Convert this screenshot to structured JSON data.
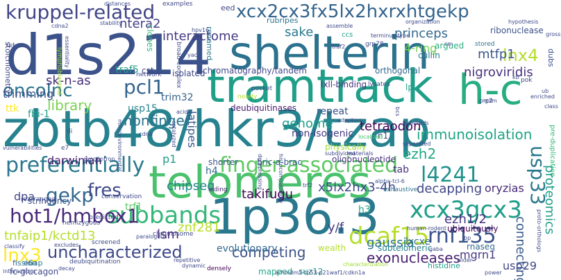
{
  "words": [
    {
      "text": "zbtb48/hkr3/tzap",
      "color": "#26828e"
    },
    {
      "text": "shelterin",
      "color": "#2c728e"
    },
    {
      "text": "d1s214",
      "color": "#3b528b"
    },
    {
      "text": "tramtrack",
      "color": "#1f9e89"
    },
    {
      "text": "telomeres",
      "color": "#4ac16d"
    },
    {
      "text": "1p36.3",
      "color": "#2a788e"
    },
    {
      "text": "h-c",
      "color": "#27ad81"
    },
    {
      "text": "finger-associated",
      "color": "#5ec962"
    },
    {
      "text": "preferentially",
      "color": "#2a788e"
    },
    {
      "text": "kruppel-related",
      "color": "#414487"
    },
    {
      "text": "xcx2cx3fx5lx2hxrxhtgekp",
      "color": "#33638d"
    },
    {
      "text": "oncolnc",
      "color": "#2c728e"
    },
    {
      "text": "pcl1",
      "color": "#33638d"
    },
    {
      "text": "subbands",
      "color": "#35b779"
    },
    {
      "text": "dcaf15",
      "color": "#b5de2b"
    },
    {
      "text": "rnf135",
      "color": "#3b528b"
    },
    {
      "text": "xcx3gcx3",
      "color": "#1f9e89"
    },
    {
      "text": "usp33",
      "color": "#2a788e"
    },
    {
      "text": "l4241",
      "color": "#21918c"
    },
    {
      "text": "hot1/hmbox1",
      "color": "#482878"
    },
    {
      "text": "gekp",
      "color": "#31688e"
    },
    {
      "text": "lnx3",
      "color": "#fde725"
    },
    {
      "text": "lnx4",
      "color": "#b5de2b"
    },
    {
      "text": "uncharacterized",
      "color": "#3e4989"
    },
    {
      "text": "interactome",
      "color": "#443983"
    },
    {
      "text": "princeps",
      "color": "#31688e"
    },
    {
      "text": "mtfp1",
      "color": "#39568c"
    },
    {
      "text": "nigroviridis",
      "color": "#46327e"
    },
    {
      "text": "immunoisolation",
      "color": "#20a486"
    },
    {
      "text": "nonfinger",
      "color": "#2c728e"
    },
    {
      "text": "tetraodon",
      "color": "#440154"
    },
    {
      "text": "fres",
      "color": "#3e4989"
    },
    {
      "text": "library",
      "color": "#7ad151"
    },
    {
      "text": "genome",
      "color": "#1f9e89"
    },
    {
      "text": "sk-n-as",
      "color": "#472d7b"
    },
    {
      "text": "x5lx2hx3-4h",
      "color": "#3e4989"
    },
    {
      "text": "competing",
      "color": "#3b528b"
    },
    {
      "text": "exonucleases",
      "color": "#481f70"
    },
    {
      "text": "tnfaip1/kctd13",
      "color": "#b5de2b"
    },
    {
      "text": "chipseq",
      "color": "#25848e"
    },
    {
      "text": "decapping",
      "color": "#3f4788"
    },
    {
      "text": "gaussia",
      "color": "#2c728e"
    },
    {
      "text": "ezh2",
      "color": "#22a884"
    },
    {
      "text": "ntera2",
      "color": "#424086"
    },
    {
      "text": "connecting",
      "color": "#38598c"
    },
    {
      "text": "proteomics",
      "color": "#1f9e89"
    },
    {
      "text": "mgrn1",
      "color": "#443983"
    },
    {
      "text": "sake",
      "color": "#2a788e"
    },
    {
      "text": "trimming",
      "color": "#3b528b"
    },
    {
      "text": "znf281",
      "color": "#b8de29"
    },
    {
      "text": "y/f",
      "color": "#443983"
    },
    {
      "text": "lsm",
      "color": "#482475"
    },
    {
      "text": "evolutionary",
      "color": "#31688e"
    },
    {
      "text": "usp29",
      "color": "#3f4788"
    },
    {
      "text": "ezh1/2",
      "color": "#46327e"
    },
    {
      "text": "takifugu",
      "color": "#440154"
    },
    {
      "text": "darwinian",
      "color": "#481b6d"
    },
    {
      "text": "dpa",
      "color": "#404688"
    },
    {
      "text": "fc-glucagon",
      "color": "#3e4989"
    },
    {
      "text": "traf5",
      "color": "#1f9e89"
    },
    {
      "text": "trf1",
      "color": "#5ec962"
    },
    {
      "text": "4-ring",
      "color": "#73d056"
    },
    {
      "text": "oryzias",
      "color": "#482878"
    },
    {
      "text": "latipes",
      "color": "#38588c"
    },
    {
      "text": "usp15",
      "color": "#25848e"
    },
    {
      "text": "trim32",
      "color": "#33638d"
    },
    {
      "text": "non-isogenic",
      "color": "#443983"
    },
    {
      "text": "wealth",
      "color": "#b5de2b"
    },
    {
      "text": "lxcxe",
      "color": "#2d708e"
    },
    {
      "text": "ttk",
      "color": "#fde725"
    },
    {
      "text": "fbi-1",
      "color": "#1f9e89"
    },
    {
      "text": "p1",
      "color": "#1f9e89"
    },
    {
      "text": "h4",
      "color": "#31688e"
    },
    {
      "text": "tab",
      "color": "#46327e"
    },
    {
      "text": "repeat",
      "color": "#3b528b"
    },
    {
      "text": "stringency",
      "color": "#3b528b"
    },
    {
      "text": "subtelomeric",
      "color": "#26828e"
    },
    {
      "text": "rnaseq",
      "color": "#31688e"
    },
    {
      "text": "mapped",
      "color": "#22a884"
    },
    {
      "text": "suz12",
      "color": "#1f9e89"
    },
    {
      "text": "ubiquitously",
      "color": "#440154"
    },
    {
      "text": "bric-a-brac",
      "color": "#38588c"
    },
    {
      "text": "oligonucleotide",
      "color": "#46327e"
    },
    {
      "text": "ribonuclease",
      "color": "#3b528b"
    },
    {
      "text": "chromatography/tandem",
      "color": "#3f4788"
    },
    {
      "text": "orthogonal",
      "color": "#31688e"
    },
    {
      "text": "deubiquitinases",
      "color": "#481b6d"
    },
    {
      "text": "lxll-binding",
      "color": "#46327e"
    },
    {
      "text": "isolated",
      "color": "#3e4989"
    },
    {
      "text": "argued",
      "color": "#29af7f"
    },
    {
      "text": "cullin",
      "color": "#2a788e"
    },
    {
      "text": "n1",
      "color": "#3f4788"
    },
    {
      "text": "physically",
      "color": "#a0da39"
    },
    {
      "text": "shorter",
      "color": "#3b528b"
    },
    {
      "text": "histidine",
      "color": "#1f9e89"
    },
    {
      "text": "fission",
      "color": "#31688e"
    },
    {
      "text": "e6ap",
      "color": "#2c728e"
    },
    {
      "text": "h3",
      "color": "#20a486"
    },
    {
      "text": "lp",
      "color": "#1f9e89"
    },
    {
      "text": "cst",
      "color": "#3f4788"
    },
    {
      "text": "clones",
      "color": "#35b779"
    },
    {
      "text": "renamed",
      "color": "#2a788e"
    },
    {
      "text": "rubripes",
      "color": "#2c728e"
    },
    {
      "text": "eed",
      "color": "#3f4788"
    },
    {
      "text": "examples",
      "color": "#3f4788"
    },
    {
      "text": "stoichiometry",
      "color": "#3e4989"
    },
    {
      "text": "nearly",
      "color": "#b5de2b"
    },
    {
      "text": "pocket",
      "color": "#3e4989"
    },
    {
      "text": "dubs",
      "color": "#3b528b"
    },
    {
      "text": "pre-duplication",
      "color": "#35b779"
    },
    {
      "text": "adaptors",
      "color": "#3e4989"
    },
    {
      "text": "hundreds",
      "color": "#3e4989"
    },
    {
      "text": "separated",
      "color": "#3e4989"
    },
    {
      "text": "localized",
      "color": "#4ac16d"
    },
    {
      "text": "aiding",
      "color": "#482878"
    },
    {
      "text": "densely",
      "color": "#440154"
    },
    {
      "text": "screened",
      "color": "#3e4989"
    },
    {
      "text": "hemizygous",
      "color": "#3e4989"
    },
    {
      "text": "rearranged",
      "color": "#3e4989"
    },
    {
      "text": "exhaustive",
      "color": "#2c728e"
    },
    {
      "text": "predicted",
      "color": "#3e4989"
    },
    {
      "text": "conservation",
      "color": "#3e4989"
    },
    {
      "text": "alpha-tcl-6",
      "color": "#3b528b"
    },
    {
      "text": "human-rodent",
      "color": "#3e4989"
    },
    {
      "text": "characterization",
      "color": "#a0da39"
    },
    {
      "text": "deubiquitination",
      "color": "#3e4989"
    },
    {
      "text": "chromosome",
      "color": "#3e4989"
    },
    {
      "text": "arf-mdm2-tp53-p21waf1/cdkn1a",
      "color": "#3e4989"
    },
    {
      "text": "interactions",
      "color": "#3e4989"
    },
    {
      "text": "broad-complex",
      "color": "#3e4989"
    },
    {
      "text": "hpv16",
      "color": "#3e4989"
    },
    {
      "text": "terminus-type",
      "color": "#3e4989"
    },
    {
      "text": "stability",
      "color": "#3e4989"
    },
    {
      "text": "assemble",
      "color": "#3e4989"
    },
    {
      "text": "organization",
      "color": "#3e4989"
    },
    {
      "text": "hypothesis",
      "color": "#3e4989"
    },
    {
      "text": "stored",
      "color": "#2c728e"
    },
    {
      "text": "grp78",
      "color": "#3e4989"
    },
    {
      "text": "ccs",
      "color": "#1f9e89"
    },
    {
      "text": "lysates",
      "color": "#3e4989"
    },
    {
      "text": "enriched",
      "color": "#3e4989"
    },
    {
      "text": "prc2",
      "color": "#3e4989"
    },
    {
      "text": "pok",
      "color": "#3e4989"
    },
    {
      "text": "network",
      "color": "#3e4989"
    },
    {
      "text": "distances",
      "color": "#3e4989"
    },
    {
      "text": "essentiality",
      "color": "#3e4989"
    },
    {
      "text": "lymphoblastoid",
      "color": "#a0da39"
    },
    {
      "text": "vulnerabilities",
      "color": "#3e4989"
    },
    {
      "text": "micronvironmental",
      "color": "#3e4989"
    },
    {
      "text": "exon/intron",
      "color": "#3e4989"
    },
    {
      "text": "subdivided",
      "color": "#3e4989"
    },
    {
      "text": "materials",
      "color": "#3e4989"
    },
    {
      "text": "proto-orthologs",
      "color": "#3e4989"
    },
    {
      "text": "classify",
      "color": "#3e4989"
    },
    {
      "text": "excludes",
      "color": "#3e4989"
    },
    {
      "text": "paralogous",
      "color": "#3e4989"
    },
    {
      "text": "cdna",
      "color": "#3e4989"
    },
    {
      "text": "decay",
      "color": "#3e4989"
    },
    {
      "text": "catalyzed",
      "color": "#3e4989"
    },
    {
      "text": "dynamic",
      "color": "#3e4989"
    },
    {
      "text": "repetitive",
      "color": "#3e4989"
    },
    {
      "text": "derepressing",
      "color": "#3e4989"
    },
    {
      "text": "histocompatibility",
      "color": "#3e4989"
    },
    {
      "text": "gaba",
      "color": "#3e4989"
    },
    {
      "text": "power",
      "color": "#3e4989"
    },
    {
      "text": "gross",
      "color": "#3e4989"
    },
    {
      "text": "class",
      "color": "#3e4989"
    },
    {
      "text": "bcs",
      "color": "#3e4989"
    },
    {
      "text": "acidic",
      "color": "#3e4989"
    },
    {
      "text": "yac",
      "color": "#3e4989"
    },
    {
      "text": "traf2",
      "color": "#3e4989"
    },
    {
      "text": "trf2",
      "color": "#3e4989"
    },
    {
      "text": "gdm",
      "color": "#3e4989"
    },
    {
      "text": "kb",
      "color": "#3e4989"
    },
    {
      "text": "ub",
      "color": "#3e4989"
    },
    {
      "text": "bp",
      "color": "#3e4989"
    },
    {
      "text": "cm",
      "color": "#3e4989"
    },
    {
      "text": "wider",
      "color": "#3e4989"
    },
    {
      "text": "set",
      "color": "#3e4989"
    },
    {
      "text": "di",
      "color": "#3e4989"
    },
    {
      "text": "e7",
      "color": "#3e4989"
    },
    {
      "text": "cdna2",
      "color": "#3e4989"
    }
  ]
}
